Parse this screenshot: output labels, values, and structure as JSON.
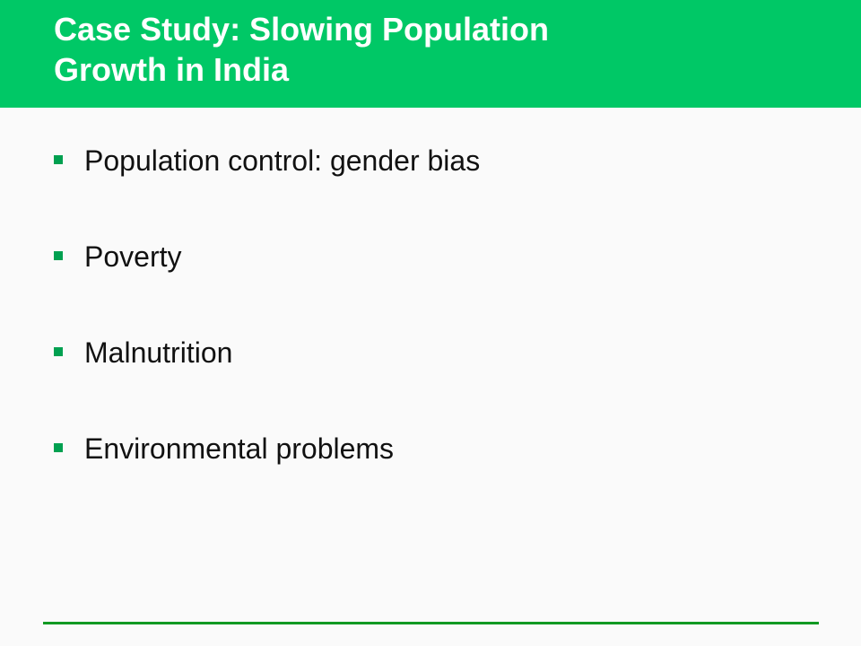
{
  "slide": {
    "title_line1": "Case Study: Slowing Population",
    "title_line2": "Growth in India",
    "bullets": [
      "Population control: gender bias",
      "Poverty",
      "Malnutrition",
      "Environmental problems"
    ],
    "colors": {
      "header_green": "#00c866",
      "bullet_green": "#00a050",
      "rule_green": "#119922"
    }
  }
}
